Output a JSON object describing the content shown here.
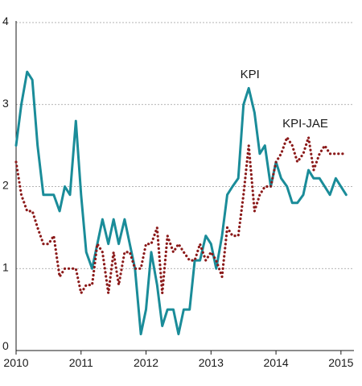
{
  "chart_data": {
    "type": "line",
    "xlim": [
      2010,
      2015.2
    ],
    "ylim": [
      0,
      4
    ],
    "x_ticks": [
      2010,
      2011,
      2012,
      2013,
      2014,
      2015
    ],
    "y_ticks": [
      0,
      1,
      2,
      3,
      4
    ],
    "grid": "horizontal-dotted",
    "legend": "inline-labels",
    "series": [
      {
        "name": "KPI",
        "color": "#1a8c99",
        "style": "solid",
        "label_at": [
          2013.45,
          3.32
        ],
        "points": [
          [
            2010.0,
            2.5
          ],
          [
            2010.08,
            3.0
          ],
          [
            2010.17,
            3.4
          ],
          [
            2010.25,
            3.3
          ],
          [
            2010.33,
            2.5
          ],
          [
            2010.42,
            1.9
          ],
          [
            2010.5,
            1.9
          ],
          [
            2010.58,
            1.9
          ],
          [
            2010.67,
            1.7
          ],
          [
            2010.75,
            2.0
          ],
          [
            2010.83,
            1.9
          ],
          [
            2010.92,
            2.8
          ],
          [
            2011.0,
            1.9
          ],
          [
            2011.08,
            1.2
          ],
          [
            2011.17,
            1.0
          ],
          [
            2011.25,
            1.3
          ],
          [
            2011.33,
            1.6
          ],
          [
            2011.42,
            1.3
          ],
          [
            2011.5,
            1.6
          ],
          [
            2011.58,
            1.3
          ],
          [
            2011.67,
            1.6
          ],
          [
            2011.75,
            1.3
          ],
          [
            2011.83,
            1.0
          ],
          [
            2011.92,
            0.2
          ],
          [
            2012.0,
            0.5
          ],
          [
            2012.08,
            1.2
          ],
          [
            2012.17,
            0.8
          ],
          [
            2012.25,
            0.3
          ],
          [
            2012.33,
            0.5
          ],
          [
            2012.42,
            0.5
          ],
          [
            2012.5,
            0.2
          ],
          [
            2012.58,
            0.5
          ],
          [
            2012.67,
            0.5
          ],
          [
            2012.75,
            1.1
          ],
          [
            2012.83,
            1.1
          ],
          [
            2012.92,
            1.4
          ],
          [
            2013.0,
            1.3
          ],
          [
            2013.08,
            1.0
          ],
          [
            2013.17,
            1.4
          ],
          [
            2013.25,
            1.9
          ],
          [
            2013.33,
            2.0
          ],
          [
            2013.42,
            2.1
          ],
          [
            2013.5,
            3.0
          ],
          [
            2013.58,
            3.2
          ],
          [
            2013.67,
            2.9
          ],
          [
            2013.75,
            2.4
          ],
          [
            2013.83,
            2.5
          ],
          [
            2013.92,
            2.0
          ],
          [
            2014.0,
            2.3
          ],
          [
            2014.08,
            2.1
          ],
          [
            2014.17,
            2.0
          ],
          [
            2014.25,
            1.8
          ],
          [
            2014.33,
            1.8
          ],
          [
            2014.42,
            1.9
          ],
          [
            2014.5,
            2.2
          ],
          [
            2014.58,
            2.1
          ],
          [
            2014.67,
            2.1
          ],
          [
            2014.75,
            2.0
          ],
          [
            2014.83,
            1.9
          ],
          [
            2014.92,
            2.1
          ],
          [
            2015.0,
            2.0
          ],
          [
            2015.08,
            1.9
          ]
        ]
      },
      {
        "name": "KPI-JAE",
        "color": "#8b1a1a",
        "style": "dotted",
        "label_at": [
          2014.1,
          2.72
        ],
        "points": [
          [
            2010.0,
            2.3
          ],
          [
            2010.08,
            1.9
          ],
          [
            2010.17,
            1.7
          ],
          [
            2010.25,
            1.7
          ],
          [
            2010.33,
            1.5
          ],
          [
            2010.42,
            1.3
          ],
          [
            2010.5,
            1.3
          ],
          [
            2010.58,
            1.4
          ],
          [
            2010.67,
            0.9
          ],
          [
            2010.75,
            1.0
          ],
          [
            2010.83,
            1.0
          ],
          [
            2010.92,
            1.0
          ],
          [
            2011.0,
            0.7
          ],
          [
            2011.08,
            0.8
          ],
          [
            2011.17,
            0.8
          ],
          [
            2011.25,
            1.3
          ],
          [
            2011.33,
            1.2
          ],
          [
            2011.42,
            0.7
          ],
          [
            2011.5,
            1.2
          ],
          [
            2011.58,
            0.8
          ],
          [
            2011.67,
            1.2
          ],
          [
            2011.75,
            1.2
          ],
          [
            2011.83,
            1.0
          ],
          [
            2011.92,
            1.0
          ],
          [
            2012.0,
            1.3
          ],
          [
            2012.08,
            1.3
          ],
          [
            2012.17,
            1.5
          ],
          [
            2012.25,
            0.7
          ],
          [
            2012.33,
            1.4
          ],
          [
            2012.42,
            1.2
          ],
          [
            2012.5,
            1.3
          ],
          [
            2012.58,
            1.2
          ],
          [
            2012.67,
            1.1
          ],
          [
            2012.75,
            1.1
          ],
          [
            2012.83,
            1.3
          ],
          [
            2012.92,
            1.1
          ],
          [
            2013.0,
            1.2
          ],
          [
            2013.08,
            1.1
          ],
          [
            2013.17,
            0.9
          ],
          [
            2013.25,
            1.5
          ],
          [
            2013.33,
            1.4
          ],
          [
            2013.42,
            1.4
          ],
          [
            2013.5,
            1.9
          ],
          [
            2013.58,
            2.5
          ],
          [
            2013.67,
            1.7
          ],
          [
            2013.75,
            1.9
          ],
          [
            2013.83,
            2.0
          ],
          [
            2013.92,
            2.0
          ],
          [
            2014.0,
            2.3
          ],
          [
            2014.08,
            2.4
          ],
          [
            2014.17,
            2.6
          ],
          [
            2014.25,
            2.5
          ],
          [
            2014.33,
            2.3
          ],
          [
            2014.42,
            2.4
          ],
          [
            2014.5,
            2.6
          ],
          [
            2014.58,
            2.2
          ],
          [
            2014.67,
            2.4
          ],
          [
            2014.75,
            2.5
          ],
          [
            2014.83,
            2.4
          ],
          [
            2014.92,
            2.4
          ],
          [
            2015.0,
            2.4
          ],
          [
            2015.08,
            2.4
          ]
        ]
      }
    ]
  }
}
